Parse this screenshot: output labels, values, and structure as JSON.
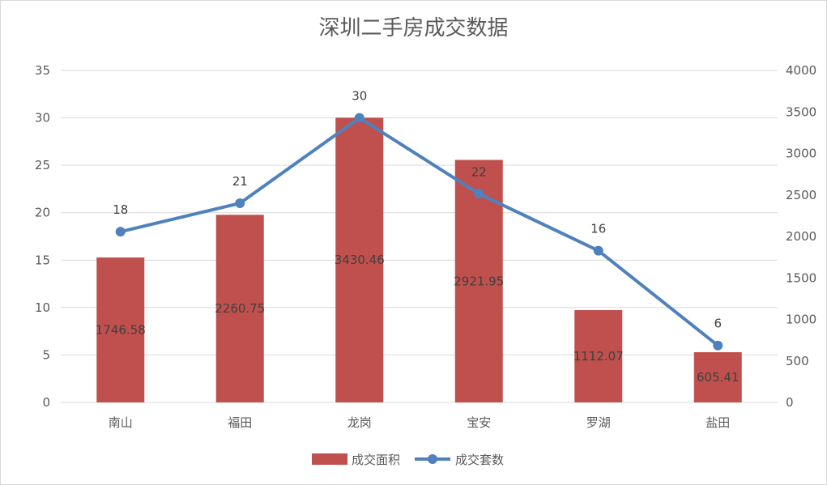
{
  "chart_data": {
    "type": "bar",
    "title": "深圳二手房成交数据",
    "categories": [
      "南山",
      "福田",
      "龙岗",
      "宝安",
      "罗湖",
      "盐田"
    ],
    "series": [
      {
        "name": "成交面积",
        "chart_type": "bar",
        "axis": "secondary",
        "values": [
          1746.58,
          2260.75,
          3430.46,
          2921.95,
          1112.07,
          605.41
        ],
        "color": "#c0504d"
      },
      {
        "name": "成交套数",
        "chart_type": "line",
        "axis": "primary",
        "values": [
          18,
          21,
          30,
          22,
          16,
          6
        ],
        "color": "#4f81bd"
      }
    ],
    "y_left": {
      "min": 0,
      "max": 35,
      "ticks": [
        0,
        5,
        10,
        15,
        20,
        25,
        30,
        35
      ]
    },
    "y_right": {
      "min": 0,
      "max": 4000,
      "ticks": [
        0,
        500,
        1000,
        1500,
        2000,
        2500,
        3000,
        3500,
        4000
      ]
    },
    "grid": true,
    "legend_position": "bottom"
  }
}
